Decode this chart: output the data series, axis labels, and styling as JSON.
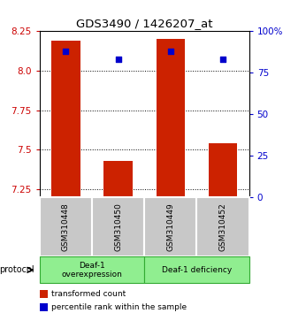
{
  "title": "GDS3490 / 1426207_at",
  "samples": [
    "GSM310448",
    "GSM310450",
    "GSM310449",
    "GSM310452"
  ],
  "red_values": [
    8.19,
    7.43,
    8.2,
    7.54
  ],
  "blue_values": [
    88,
    83,
    88,
    83
  ],
  "y_min": 7.2,
  "y_max": 8.25,
  "y_ticks": [
    7.25,
    7.5,
    7.75,
    8.0,
    8.25
  ],
  "y2_ticks": [
    0,
    25,
    50,
    75,
    100
  ],
  "y2_labels": [
    "0",
    "25",
    "50",
    "75",
    "100%"
  ],
  "left_color": "#CC0000",
  "right_color": "#0000CC",
  "bar_color": "#CC2200",
  "dot_color": "#0000CC",
  "group1_label": "Deaf-1\noverexpression",
  "group2_label": "Deaf-1 deficiency",
  "protocol_label": "protocol",
  "legend_red": "transformed count",
  "legend_blue": "percentile rank within the sample",
  "group_color": "#90EE90",
  "group_edge_color": "#33AA33",
  "sample_bg": "#C8C8C8",
  "bar_bottom": 7.2,
  "bar_width": 0.55
}
